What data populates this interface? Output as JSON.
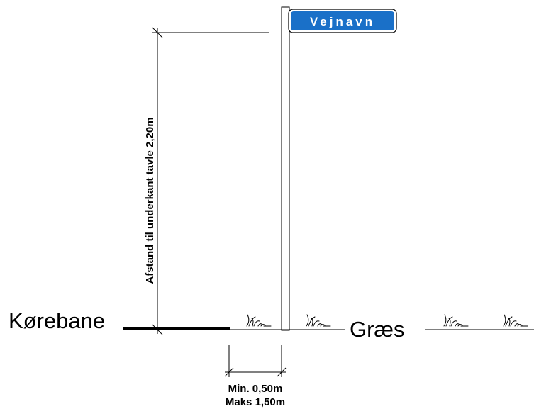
{
  "sign": {
    "label": "Vejnavn"
  },
  "dimensions": {
    "height_label": "Afstand til underkant tavle 2,20m",
    "offset_min": "Min. 0,50m",
    "offset_max": "Maks 1,50m"
  },
  "labels": {
    "road": "Kørebane",
    "grass": "Græs"
  }
}
